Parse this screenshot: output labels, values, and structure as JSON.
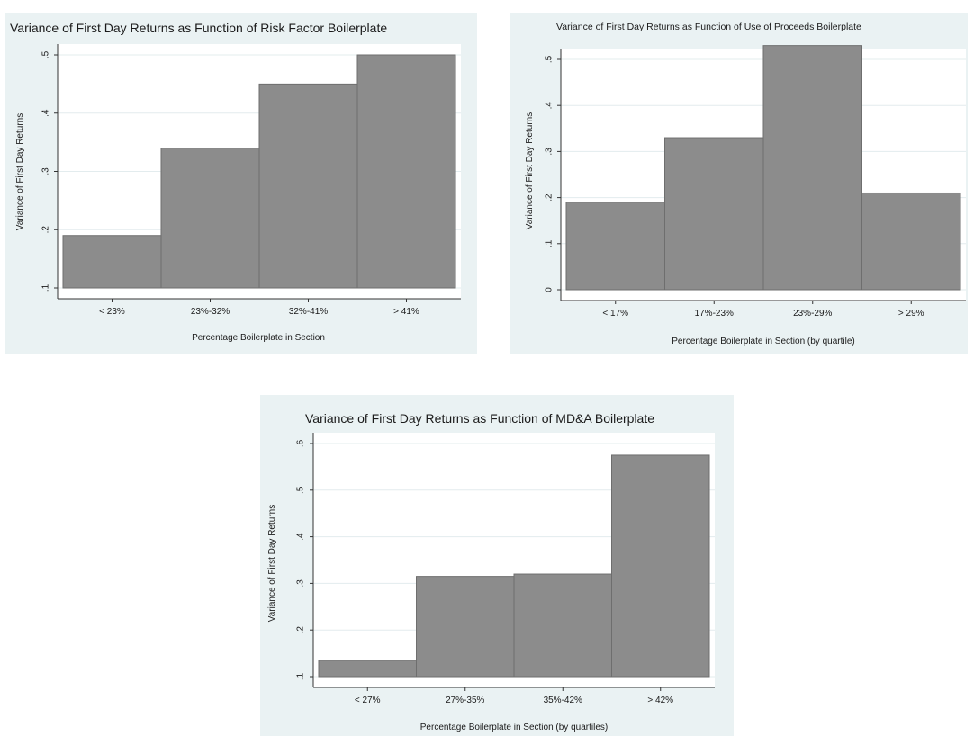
{
  "chart_data": [
    {
      "type": "bar",
      "title": "Variance of First Day Returns as Function of Risk Factor Boilerplate",
      "xlabel": "Percentage Boilerplate in Section",
      "ylabel": "Variance of First Day Returns",
      "categories": [
        "< 23%",
        "23%-32%",
        "32%-41%",
        "> 41%"
      ],
      "values": [
        0.19,
        0.34,
        0.45,
        0.5
      ],
      "yticks": [
        ".1",
        ".2",
        ".3",
        ".4",
        ".5"
      ],
      "ytick_values": [
        0.1,
        0.2,
        0.3,
        0.4,
        0.5
      ],
      "ylim": [
        0.1,
        0.5
      ],
      "grid": true,
      "bar_color": "#8c8c8c"
    },
    {
      "type": "bar",
      "title": "Variance of First Day Returns as Function of Use of Proceeds Boilerplate",
      "xlabel": "Percentage Boilerplate in Section (by quartile)",
      "ylabel": "Variance of First Day Returns",
      "categories": [
        "< 17%",
        "17%-23%",
        "23%-29%",
        "> 29%"
      ],
      "values": [
        0.19,
        0.33,
        0.53,
        0.21
      ],
      "yticks": [
        "0",
        ".1",
        ".2",
        ".3",
        ".4",
        ".5"
      ],
      "ytick_values": [
        0,
        0.1,
        0.2,
        0.3,
        0.4,
        0.5
      ],
      "ylim": [
        0,
        0.5
      ],
      "grid": true,
      "bar_color": "#8c8c8c"
    },
    {
      "type": "bar",
      "title": "Variance of First Day Returns as Function of MD&A Boilerplate",
      "xlabel": "Percentage Boilerplate in Section (by quartiles)",
      "ylabel": "Variance of First Day Returns",
      "categories": [
        "< 27%",
        "27%-35%",
        "35%-42%",
        "> 42%"
      ],
      "values": [
        0.135,
        0.315,
        0.32,
        0.575
      ],
      "yticks": [
        ".1",
        ".2",
        ".3",
        ".4",
        ".5",
        ".6"
      ],
      "ytick_values": [
        0.1,
        0.2,
        0.3,
        0.4,
        0.5,
        0.6
      ],
      "ylim": [
        0.1,
        0.6
      ],
      "grid": true,
      "bar_color": "#8c8c8c"
    }
  ]
}
